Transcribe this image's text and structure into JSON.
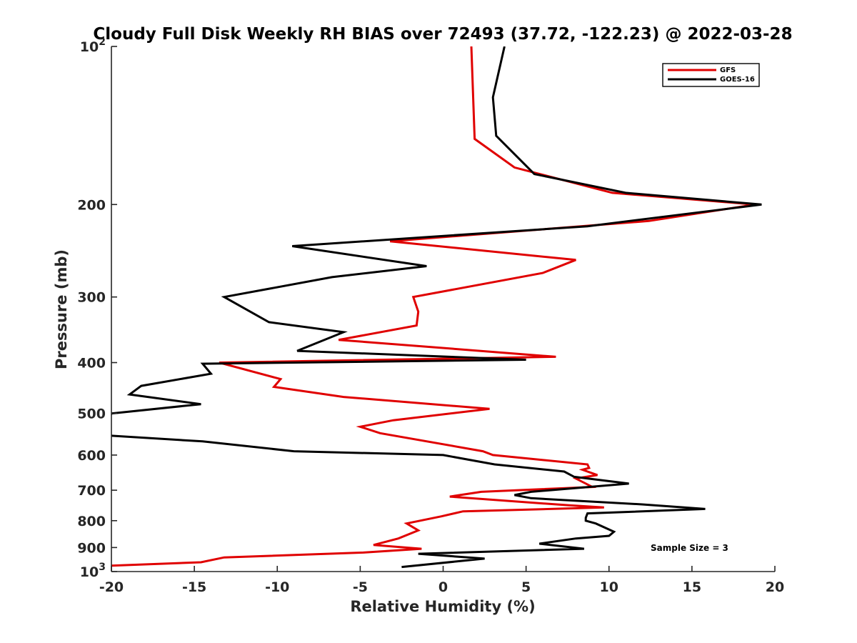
{
  "chart_data": {
    "type": "line",
    "title": "Cloudy Full Disk Weekly RH BIAS over 72493 (37.72, -122.23) @ 2022-03-28",
    "xlabel": "Relative Humidity (%)",
    "ylabel": "Pressure (mb)",
    "xlim": [
      -20,
      20
    ],
    "ylim": [
      100,
      1000
    ],
    "y_scale": "log",
    "y_reversed": true,
    "x_ticks": [
      "-20",
      "-15",
      "-10",
      "-5",
      "0",
      "5",
      "10",
      "15",
      "20"
    ],
    "y_ticks": [
      {
        "value": 100,
        "base": "10",
        "exp": "2"
      },
      {
        "value": 200,
        "label": "200"
      },
      {
        "value": 300,
        "label": "300"
      },
      {
        "value": 400,
        "label": "400"
      },
      {
        "value": 500,
        "label": "500"
      },
      {
        "value": 600,
        "label": "600"
      },
      {
        "value": 700,
        "label": "700"
      },
      {
        "value": 800,
        "label": "800"
      },
      {
        "value": 900,
        "label": "900"
      },
      {
        "value": 1000,
        "base": "10",
        "exp": "3"
      }
    ],
    "grid": false,
    "legend_position": "top-right",
    "annotation": "Sample Size = 3",
    "series": [
      {
        "name": "GFS",
        "color": "#e00000",
        "points": [
          [
            1.7,
            100
          ],
          [
            1.9,
            150
          ],
          [
            4.3,
            170
          ],
          [
            10.2,
            190
          ],
          [
            18.8,
            200
          ],
          [
            12.4,
            215
          ],
          [
            -3.2,
            235
          ],
          [
            8.0,
            255
          ],
          [
            6.0,
            270
          ],
          [
            -1.8,
            300
          ],
          [
            -1.5,
            320
          ],
          [
            -1.6,
            340
          ],
          [
            -6.3,
            362
          ],
          [
            6.8,
            390
          ],
          [
            -13.5,
            400
          ],
          [
            -9.8,
            430
          ],
          [
            -10.2,
            445
          ],
          [
            -6.0,
            465
          ],
          [
            2.8,
            490
          ],
          [
            -3.0,
            515
          ],
          [
            -5.0,
            530
          ],
          [
            -3.8,
            545
          ],
          [
            2.4,
            590
          ],
          [
            3.0,
            600
          ],
          [
            8.7,
            625
          ],
          [
            8.8,
            635
          ],
          [
            8.4,
            640
          ],
          [
            9.3,
            655
          ],
          [
            8.0,
            665
          ],
          [
            9.0,
            690
          ],
          [
            2.3,
            705
          ],
          [
            0.4,
            720
          ],
          [
            7.6,
            748
          ],
          [
            9.7,
            755
          ],
          [
            1.2,
            768
          ],
          [
            -0.1,
            785
          ],
          [
            -2.2,
            810
          ],
          [
            -1.5,
            835
          ],
          [
            -2.7,
            865
          ],
          [
            -4.2,
            890
          ],
          [
            -1.3,
            905
          ],
          [
            -4.8,
            920
          ],
          [
            -13.2,
            940
          ],
          [
            -14.6,
            960
          ],
          [
            -20.2,
            975
          ]
        ]
      },
      {
        "name": "GOES-16",
        "color": "#000000",
        "points": [
          [
            3.7,
            100
          ],
          [
            3.0,
            125
          ],
          [
            3.2,
            148
          ],
          [
            5.5,
            175
          ],
          [
            11.0,
            190
          ],
          [
            19.2,
            200
          ],
          [
            8.7,
            220
          ],
          [
            -9.1,
            240
          ],
          [
            -1.0,
            262
          ],
          [
            -6.7,
            275
          ],
          [
            -13.2,
            300
          ],
          [
            -10.5,
            335
          ],
          [
            -6.0,
            350
          ],
          [
            -8.8,
            380
          ],
          [
            5.0,
            395
          ],
          [
            -14.5,
            402
          ],
          [
            -14.0,
            420
          ],
          [
            -18.2,
            443
          ],
          [
            -18.9,
            460
          ],
          [
            -14.6,
            480
          ],
          [
            -20.0,
            500
          ],
          [
            -20.5,
            550
          ],
          [
            -14.5,
            565
          ],
          [
            -9.0,
            590
          ],
          [
            0.0,
            600
          ],
          [
            3.1,
            625
          ],
          [
            7.3,
            645
          ],
          [
            7.9,
            660
          ],
          [
            11.2,
            680
          ],
          [
            5.3,
            705
          ],
          [
            4.3,
            715
          ],
          [
            5.3,
            725
          ],
          [
            12.0,
            745
          ],
          [
            15.8,
            760
          ],
          [
            8.7,
            775
          ],
          [
            8.6,
            790
          ],
          [
            8.6,
            800
          ],
          [
            9.2,
            810
          ],
          [
            10.3,
            840
          ],
          [
            10.0,
            855
          ],
          [
            8.0,
            865
          ],
          [
            5.8,
            885
          ],
          [
            8.5,
            905
          ],
          [
            -1.5,
            925
          ],
          [
            2.5,
            945
          ],
          [
            -2.5,
            980
          ]
        ]
      }
    ]
  }
}
